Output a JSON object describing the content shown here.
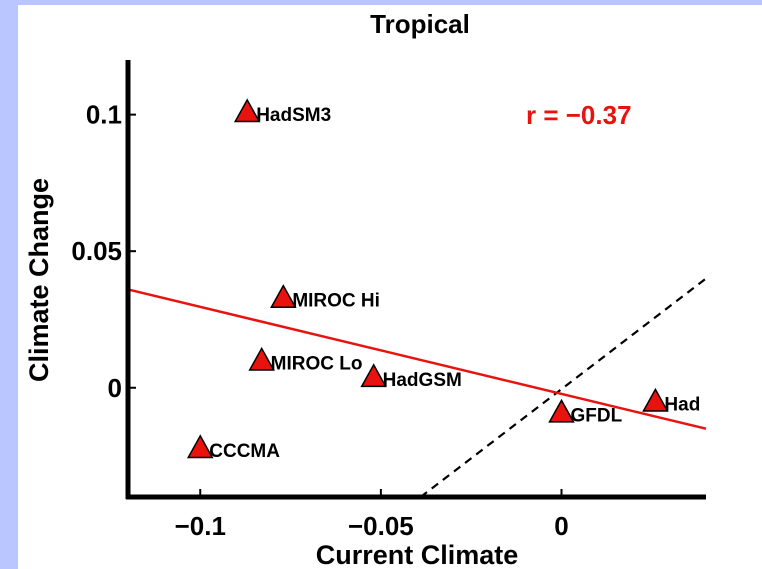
{
  "chart_data": {
    "type": "scatter",
    "title": "Tropical",
    "xlabel": "Current Climate",
    "ylabel": "Climate Change",
    "xlim": [
      -0.12,
      0.04
    ],
    "ylim": [
      -0.04,
      0.12
    ],
    "xticks": [
      -0.1,
      -0.05,
      0
    ],
    "xtick_labels": [
      "−0.1",
      "−0.05",
      "0"
    ],
    "yticks": [
      0,
      0.05,
      0.1
    ],
    "ytick_labels": [
      "0",
      "0.05",
      "0.1"
    ],
    "grid": false,
    "annotation": "r = −0.37",
    "annotation_color": "#e8130f",
    "marker": "triangle",
    "marker_color": "#e8130f",
    "points": [
      {
        "label": "HadSM3",
        "x": -0.087,
        "y": 0.101
      },
      {
        "label": "MIROC Hi",
        "x": -0.077,
        "y": 0.033
      },
      {
        "label": "MIROC Lo",
        "x": -0.083,
        "y": 0.01
      },
      {
        "label": "HadGSM",
        "x": -0.052,
        "y": 0.004
      },
      {
        "label": "GFDL",
        "x": 0.0,
        "y": -0.009
      },
      {
        "label": "Had",
        "x": 0.026,
        "y": -0.005
      },
      {
        "label": "CCCMA",
        "x": -0.1,
        "y": -0.022
      }
    ],
    "regression_line": {
      "color": "#e8130f",
      "x": [
        -0.12,
        0.04
      ],
      "y": [
        0.036,
        -0.015
      ]
    },
    "reference_line": {
      "style": "dashed",
      "color": "#000000",
      "x": [
        -0.039,
        0.04
      ],
      "y": [
        -0.04,
        0.04
      ]
    }
  }
}
